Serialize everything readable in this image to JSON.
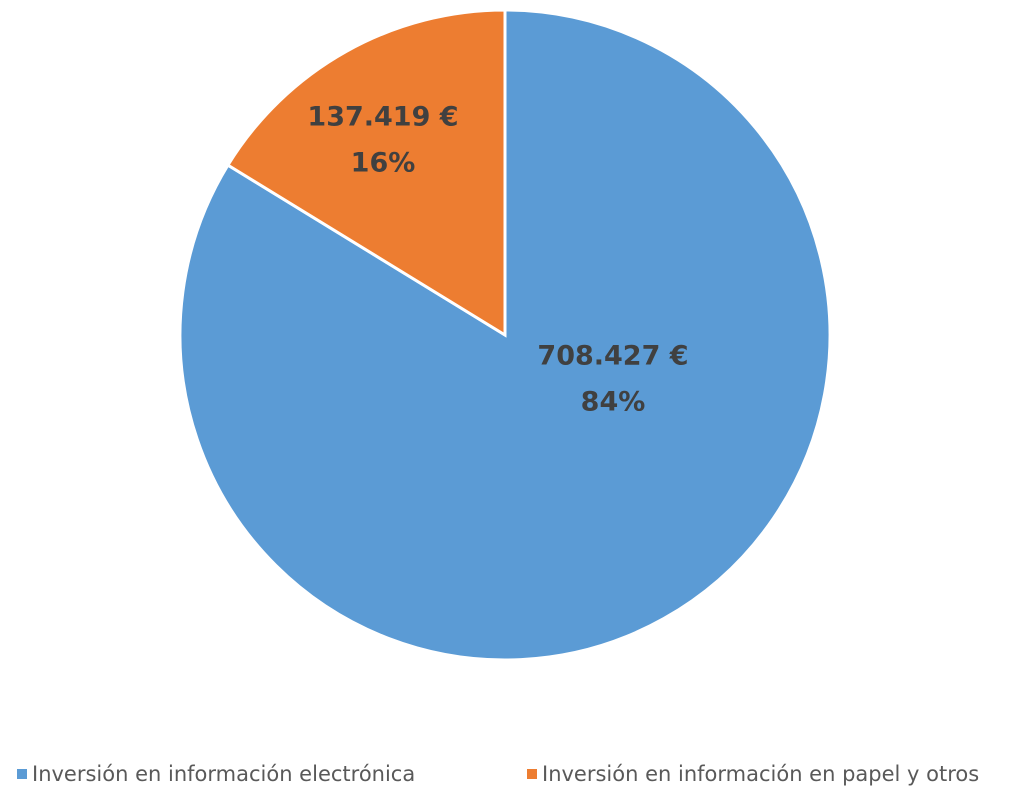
{
  "chart_data": {
    "type": "pie",
    "categories": [
      "Inversión en información electrónica",
      "Inversión en información en papel y otros"
    ],
    "values": [
      708427,
      137419
    ],
    "value_labels": [
      "708.427 €",
      "137.419 €"
    ],
    "percentages": [
      84,
      16
    ],
    "percentage_labels": [
      "84%",
      "16%"
    ],
    "colors": [
      "#5b9bd5",
      "#ed7d31"
    ],
    "legend": "bottom"
  }
}
